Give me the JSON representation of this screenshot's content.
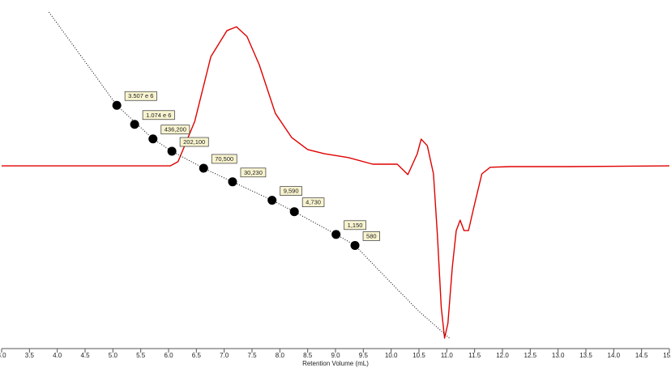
{
  "chart_data": {
    "type": "line",
    "x_label": "Retention Volume (mL)",
    "xlim": [
      3,
      15
    ],
    "xticks": [
      {
        "value": 3,
        "label": "3.0"
      },
      3.5,
      {
        "value": 4,
        "label": "4.0"
      },
      4.5,
      {
        "value": 5,
        "label": "5.0"
      },
      5.5,
      {
        "value": 6,
        "label": "6.0"
      },
      6.5,
      {
        "value": 7,
        "label": "7.0"
      },
      7.5,
      {
        "value": 8,
        "label": "8.0"
      },
      8.5,
      {
        "value": 9,
        "label": "9.0"
      },
      9.5,
      {
        "value": 10,
        "label": "10.0"
      },
      10.5,
      {
        "value": 11,
        "label": "11.0"
      },
      11.5,
      {
        "value": 12,
        "label": "12.0"
      },
      12.5,
      {
        "value": 13,
        "label": "13.0"
      },
      13.5,
      {
        "value": 14,
        "label": "14.0"
      },
      14.5,
      {
        "value": 15,
        "label": "15.0"
      }
    ],
    "ylim": [
      1,
      2450000000
    ],
    "log_scale": true,
    "y2lim": [
      0,
      100
    ],
    "series": [
      {
        "color": "#e00000",
        "axis": "y2",
        "x": [
          3.0,
          6.03,
          6.17,
          6.47,
          6.76,
          7.05,
          7.22,
          7.41,
          7.63,
          7.92,
          8.21,
          8.5,
          8.8,
          9.23,
          9.67,
          10.11,
          10.3,
          10.47,
          10.54,
          10.65,
          10.76,
          10.83,
          10.9,
          10.96,
          11.02,
          11.1,
          11.17,
          11.24,
          11.31,
          11.39,
          11.49,
          11.63,
          11.78,
          12.14,
          13.16,
          15.0
        ],
        "values": [
          52.3,
          52.3,
          53.5,
          65.1,
          83.7,
          91.2,
          92.3,
          89.5,
          81.4,
          67.4,
          60.5,
          57.0,
          55.8,
          54.7,
          52.8,
          52.8,
          49.8,
          55.8,
          60.0,
          58.1,
          50.0,
          32.6,
          11.6,
          2.8,
          7.0,
          23.3,
          33.7,
          36.7,
          33.7,
          33.7,
          40.7,
          50.0,
          51.9,
          52.1,
          52.1,
          52.3
        ]
      },
      {
        "color": "#000000",
        "dash": "dotted",
        "x": [
          3.85,
          4.5,
          5.07,
          5.72,
          6.06,
          6.63,
          7.15,
          7.86,
          8.26,
          9.01,
          9.35,
          10.0,
          10.5,
          11.05
        ],
        "values": [
          1150000000,
          53000000,
          3507000,
          436200,
          202100,
          70500,
          30230,
          9590,
          4730,
          1150,
          580,
          56,
          9.6,
          1.8
        ]
      },
      {
        "color": "#000000",
        "marker": "circle",
        "x": [
          5.07,
          5.39,
          5.72,
          6.06,
          6.63,
          7.15,
          7.86,
          8.26,
          9.01,
          9.35
        ],
        "values": [
          3507000,
          1074000,
          436200,
          202100,
          70500,
          30230,
          9590,
          4730,
          1150,
          580
        ],
        "value_labels": [
          "3.507 e 6",
          "1.074 e 6",
          "436,200",
          "202,100",
          "70,500",
          "30,230",
          "9,590",
          "4,730",
          "1,150",
          "580"
        ]
      }
    ]
  }
}
